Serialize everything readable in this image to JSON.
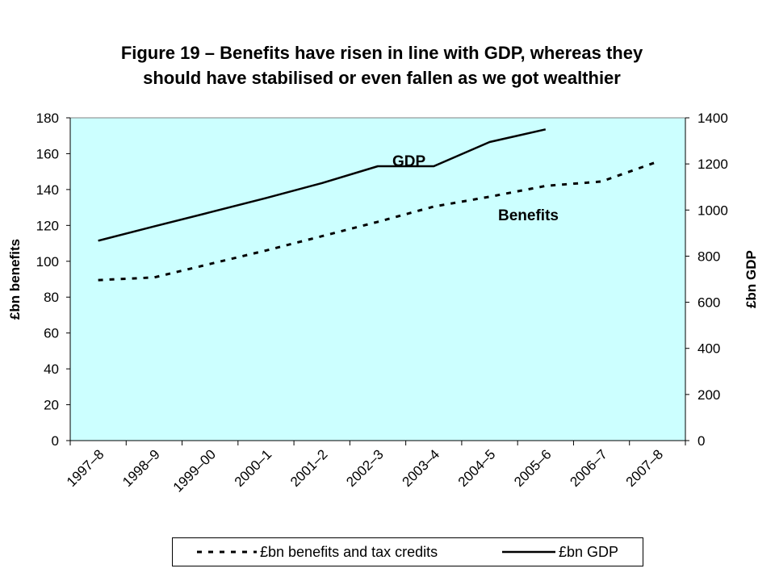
{
  "title_line1": "Figure 19 – Benefits have risen in line with GDP, whereas they",
  "title_line2": "should have stabilised or even fallen as we got wealthier",
  "chart_data": {
    "type": "line",
    "categories": [
      "1997–8",
      "1998–9",
      "1999–00",
      "2000–1",
      "2001–2",
      "2002–3",
      "2003–4",
      "2004–5",
      "2005–6",
      "2006–7",
      "2007–8"
    ],
    "y_left": {
      "label": "£bn benefits",
      "range": [
        0,
        180
      ],
      "ticks": [
        0,
        20,
        40,
        60,
        80,
        100,
        120,
        140,
        160,
        180
      ]
    },
    "y_right": {
      "label": "£bn GDP",
      "range": [
        0,
        1400
      ],
      "ticks": [
        0,
        200,
        400,
        600,
        800,
        1000,
        1200,
        1400
      ]
    },
    "series": [
      {
        "name": "£bn benefits and tax credits",
        "axis": "left",
        "style": "dotted",
        "values": [
          89.5,
          91,
          98.5,
          106,
          114,
          122,
          130.5,
          136,
          142,
          144.5,
          155.5
        ],
        "annotation": "Benefits"
      },
      {
        "name": "£bn GDP",
        "axis": "right",
        "style": "solid",
        "values": [
          867,
          929,
          990,
          1052,
          1117,
          1190,
          1190,
          1295,
          1350,
          null,
          null
        ],
        "annotation": "GDP"
      }
    ],
    "plot_background": "#ccffff",
    "line_color": "#000000",
    "grid": false,
    "legend_position": "bottom"
  }
}
